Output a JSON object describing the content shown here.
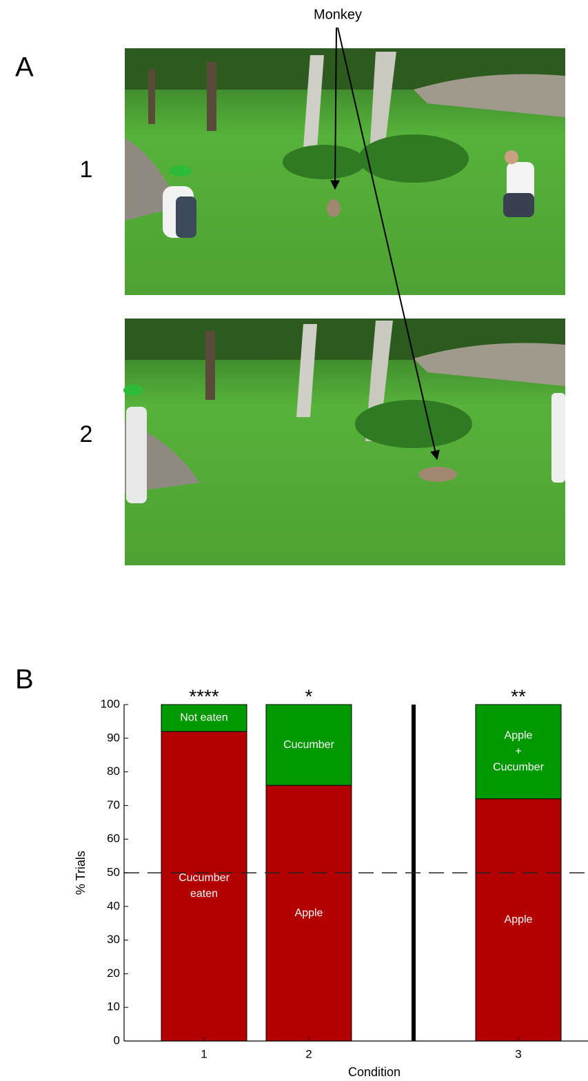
{
  "panel_a": {
    "label": "A",
    "frames": [
      "1",
      "2"
    ],
    "annotation": "Monkey"
  },
  "chart_data": {
    "type": "stacked_bar",
    "panel_label": "B",
    "categories": [
      "1",
      "2",
      null,
      "3"
    ],
    "series": [
      {
        "color": "#b30000",
        "values": [
          92,
          76,
          null,
          72
        ],
        "segment_labels": [
          [
            "Cucumber",
            "eaten"
          ],
          [
            "Apple"
          ],
          null,
          [
            "Apple"
          ]
        ]
      },
      {
        "color": "#009900",
        "values": [
          8,
          24,
          null,
          28
        ],
        "segment_labels": [
          [
            "Not eaten"
          ],
          [
            "Cucumber"
          ],
          null,
          [
            "Apple",
            "+",
            "Cucumber"
          ]
        ]
      }
    ],
    "annotations": [
      "****",
      "*",
      null,
      "**"
    ],
    "ylim": [
      0,
      100
    ],
    "yticks": [
      0,
      10,
      20,
      30,
      40,
      50,
      60,
      70,
      80,
      90,
      100
    ],
    "ylabel": "% Trials",
    "xlabel": "Condition",
    "reference_line": 50
  }
}
